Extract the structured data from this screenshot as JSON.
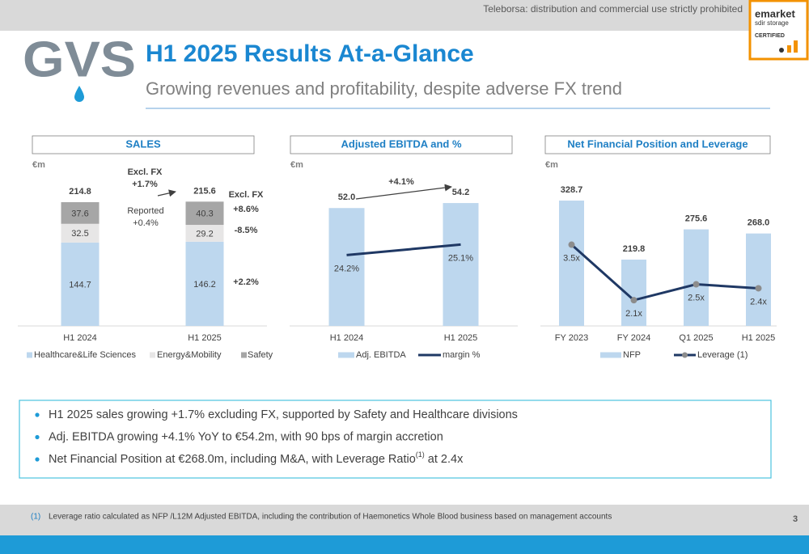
{
  "header": {
    "notice": "Teleborsa: distribution and commercial use strictly prohibited",
    "badge": [
      "emarket",
      "sdir storage",
      "CERTIFIED"
    ],
    "logo": "GVS",
    "title": "H1 2025 Results At-a-Glance",
    "subtitle": "Growing revenues and profitability, despite adverse FX trend"
  },
  "chart_data": [
    {
      "type": "bar",
      "stacked": true,
      "title": "SALES",
      "unit": "€m",
      "categories": [
        "H1 2024",
        "H1 2025"
      ],
      "series": [
        {
          "name": "Healthcare&Life Sciences",
          "color": "#bdd7ee",
          "values": [
            144.7,
            146.2
          ]
        },
        {
          "name": "Energy&Mobility",
          "color": "#e7e6e6",
          "values": [
            32.5,
            29.2
          ]
        },
        {
          "name": "Safety",
          "color": "#a6a6a6",
          "values": [
            37.6,
            40.3
          ]
        }
      ],
      "totals": [
        214.8,
        215.6
      ],
      "ylim": [
        0,
        240
      ],
      "annotations": [
        "Excl. FX",
        "+1.7%",
        "Reported",
        "+0.4%",
        "Excl. FX",
        "+8.6%",
        "-8.5%",
        "+2.2%"
      ]
    },
    {
      "type": "bar",
      "title": "Adjusted EBITDA and %",
      "unit": "€m",
      "categories": [
        "H1 2024",
        "H1 2025"
      ],
      "series": [
        {
          "name": "Adj. EBITDA",
          "color": "#bdd7ee",
          "values": [
            52.0,
            54.2
          ],
          "value_labels": [
            "52.0",
            "54.2"
          ]
        },
        {
          "name": "margin %",
          "type": "line",
          "axis": "y2",
          "color": "#1f3864",
          "values": [
            24.2,
            25.1
          ],
          "value_labels": [
            "24.2%",
            "25.1%"
          ]
        }
      ],
      "ylim": [
        0,
        61
      ],
      "y2lim": [
        18.1,
        30
      ],
      "annotations": [
        "+4.1%"
      ]
    },
    {
      "type": "bar",
      "title": "Net Financial Position and Leverage",
      "unit": "€m",
      "categories": [
        "FY 2023",
        "FY 2024",
        "Q1 2025",
        "H1 2025"
      ],
      "series": [
        {
          "name": "NFP",
          "color": "#bdd7ee",
          "values": [
            328.7,
            219.8,
            275.6,
            268.0
          ],
          "value_labels": [
            "328.7",
            "219.8",
            "275.6",
            "268.0"
          ]
        },
        {
          "name": "Leverage (1)",
          "type": "line",
          "axis": "y2",
          "color": "#1f3864",
          "marker_color": "#8c8c8c",
          "values": [
            3.5,
            2.1,
            2.5,
            2.4
          ],
          "value_labels": [
            "3.5x",
            "2.1x",
            "2.5x",
            "2.4x"
          ]
        }
      ],
      "ylim": [
        97.4,
        352.6
      ],
      "y2lim": [
        1.45,
        4.94
      ],
      "annotations": []
    }
  ],
  "bullets": [
    [
      "H1 2025 sales growing +1.7% excluding FX, supported by Safety and Healthcare divisions"
    ],
    [
      "Adj. EBITDA growing +4.1% YoY to €54.2m, with 90 bps of margin accretion"
    ],
    [
      "Net Financial Position at €268.0m, including M&A, with Leverage Ratio",
      "(1)",
      " at 2.4x"
    ]
  ],
  "footer": {
    "note_marker": "(1)",
    "note": "Leverage ratio calculated as NFP /L12M Adjusted EBITDA, including the contribution of Haemonetics Whole Blood business based on management accounts",
    "page": "3"
  }
}
